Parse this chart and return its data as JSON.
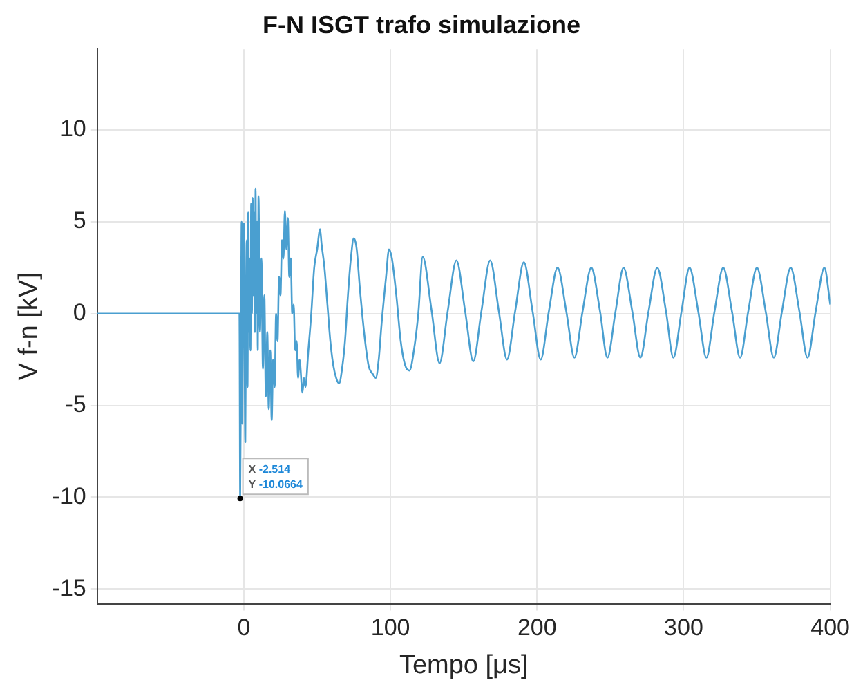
{
  "chart_data": {
    "type": "line",
    "title": "F-N ISGT trafo simulazione",
    "xlabel": "Tempo [μs]",
    "ylabel": "V f-n [kV]",
    "xlim": [
      -100,
      400
    ],
    "xticks": [
      0,
      100,
      200,
      300,
      400
    ],
    "ylim": [
      -15.8,
      14.4
    ],
    "yticks": [
      -15,
      -10,
      -5,
      0,
      5,
      10
    ],
    "grid": true,
    "legend": false,
    "marker": "none",
    "line_style": "solid",
    "annotations": [
      {
        "text": "X -2.514\nY -10.0664",
        "x": -2.514,
        "y": -10.0664
      }
    ],
    "series": [
      {
        "color": "#4a9fd0",
        "x": [
          -100,
          -3,
          -2.514,
          -2,
          -1.5,
          -1,
          -0.5,
          0,
          0.5,
          1,
          1.5,
          2,
          2.5,
          3,
          3.5,
          4,
          4.5,
          5,
          5.5,
          6,
          6.5,
          7,
          7.5,
          8,
          8.5,
          9,
          9.5,
          10,
          11,
          12,
          13,
          14,
          15,
          16,
          17,
          18,
          19,
          20,
          21,
          22,
          23,
          24,
          25,
          26,
          27,
          28,
          29,
          30,
          31,
          32,
          33,
          34,
          35,
          36,
          37,
          38,
          40,
          41,
          42,
          44,
          46,
          48,
          50,
          52,
          53,
          55,
          57,
          59,
          61,
          63,
          65,
          67,
          69,
          71,
          73,
          75,
          77,
          79,
          82,
          85,
          88,
          90,
          92,
          94,
          97,
          99,
          101,
          104,
          107,
          110,
          113,
          116,
          119,
          122,
          128,
          133.5,
          139,
          145,
          151,
          156.5,
          162,
          168,
          174,
          179.5,
          185,
          191,
          197,
          202.5,
          208,
          214,
          220,
          225.5,
          231,
          237,
          243,
          248,
          253.5,
          259,
          265,
          270.5,
          276,
          282,
          288,
          293,
          298.5,
          304,
          310,
          315.5,
          321,
          327,
          333,
          338.5,
          344,
          350,
          356,
          361.5,
          367,
          373,
          379,
          384.5,
          390,
          396,
          400
        ],
        "values": [
          0,
          0,
          -10.0664,
          -3,
          5,
          -6,
          3,
          4.9,
          -2,
          -7,
          1,
          4,
          -4,
          5.5,
          -1,
          3,
          -2,
          6,
          0,
          6.3,
          1,
          5.5,
          -1,
          6.8,
          0,
          5,
          -2,
          6.4,
          -1,
          3,
          -3,
          1,
          -4.5,
          -1,
          -5.2,
          -2,
          -5.8,
          -2.5,
          -4,
          0,
          -1.5,
          2,
          1,
          4,
          3,
          5.6,
          3.5,
          5.2,
          2,
          3,
          0,
          0.5,
          -2,
          -1.5,
          -3.5,
          -2.5,
          -4.3,
          -3.5,
          -4,
          -2,
          0,
          2.5,
          3.5,
          4.6,
          3.8,
          2.5,
          0.5,
          -1.5,
          -2.8,
          -3.5,
          -3.8,
          -3,
          -1.5,
          1,
          3,
          4.1,
          3.5,
          1.5,
          -1,
          -2.8,
          -3.3,
          -3.5,
          -2.5,
          -0.5,
          2,
          3.5,
          3,
          1,
          -1.5,
          -2.8,
          -3.1,
          -2,
          0,
          3.1,
          0.2,
          -2.7,
          0.1,
          2.9,
          0.1,
          -2.6,
          0.1,
          2.9,
          0.1,
          -2.5,
          0.1,
          2.8,
          0.1,
          -2.5,
          0.1,
          2.5,
          0.1,
          -2.4,
          0.1,
          2.5,
          0.1,
          -2.4,
          0.1,
          2.5,
          0.1,
          -2.4,
          0.1,
          2.5,
          0.1,
          -2.4,
          0.1,
          2.5,
          0.1,
          -2.4,
          0.1,
          2.5,
          0.1,
          -2.4,
          0.1,
          2.5,
          0.1,
          -2.4,
          0.1,
          2.5,
          0.1,
          -2.4,
          0.1,
          2.5,
          0.5
        ]
      }
    ]
  }
}
